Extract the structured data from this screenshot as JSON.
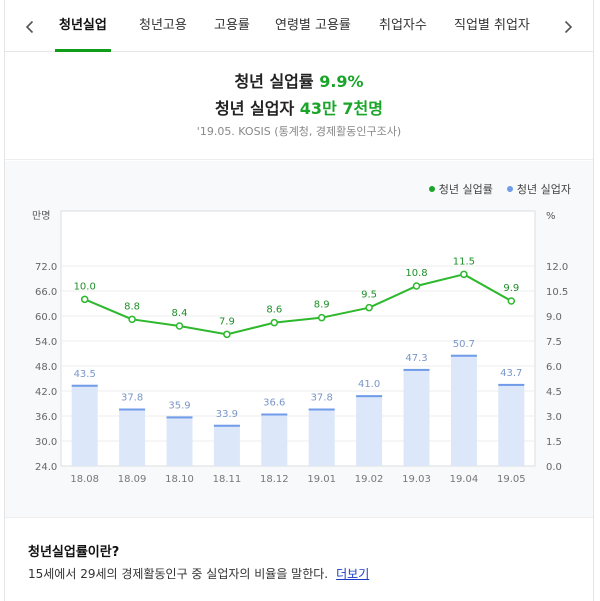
{
  "tabs": [
    "청년실업",
    "청년고용",
    "고용률",
    "연령별 고용률",
    "취업자수",
    "직업별 취업자"
  ],
  "active_tab": 0,
  "headline": {
    "line1_label": "청년 실업률",
    "line1_value": "9.9%",
    "line2_label": "청년 실업자",
    "line2_value": "43만 7천명",
    "source": "'19.05. KOSIS (통계청, 경제활동인구조사)"
  },
  "colors": {
    "accent": "#19a52a",
    "line": "#2db82d",
    "bar_fill": "#dce7fa",
    "bar_top": "#6f9be8",
    "link": "#1a3cc8"
  },
  "chart_data": {
    "type": "bar+line",
    "categories": [
      "18.08",
      "18.09",
      "18.10",
      "18.11",
      "18.12",
      "19.01",
      "19.02",
      "19.03",
      "19.04",
      "19.05"
    ],
    "series": [
      {
        "name": "청년 실업자",
        "type": "bar",
        "axis": "left",
        "values": [
          43.5,
          37.8,
          35.9,
          33.9,
          36.6,
          37.8,
          41.0,
          47.3,
          50.7,
          43.7
        ],
        "labels": [
          "43.5",
          "37.8",
          "35.9",
          "33.9",
          "36.6",
          "37.8",
          "41.0",
          "47.3",
          "50.7",
          "43.7"
        ]
      },
      {
        "name": "청년 실업률",
        "type": "line",
        "axis": "right",
        "values": [
          10.0,
          8.8,
          8.4,
          7.9,
          8.6,
          8.9,
          9.5,
          10.8,
          11.5,
          9.9
        ],
        "labels": [
          "10.0",
          "8.8",
          "8.4",
          "7.9",
          "8.6",
          "8.9",
          "9.5",
          "10.8",
          "11.5",
          "9.9"
        ]
      }
    ],
    "left_axis": {
      "unit": "만명",
      "ticks": [
        "24.0",
        "30.0",
        "36.0",
        "42.0",
        "48.0",
        "54.0",
        "60.0",
        "66.0",
        "72.0"
      ],
      "range": [
        24,
        72
      ]
    },
    "right_axis": {
      "unit": "%",
      "ticks": [
        "0.0",
        "1.5",
        "3.0",
        "4.5",
        "6.0",
        "7.5",
        "9.0",
        "10.5",
        "12.0"
      ],
      "range": [
        0,
        12
      ]
    },
    "legend": [
      "청년 실업률",
      "청년 실업자"
    ],
    "legend_position": "top-right"
  },
  "description": {
    "title": "청년실업률이란?",
    "text": "15세에서 29세의 경제활동인구 중 실업자의 비율을 말한다.",
    "more_label": "더보기"
  }
}
